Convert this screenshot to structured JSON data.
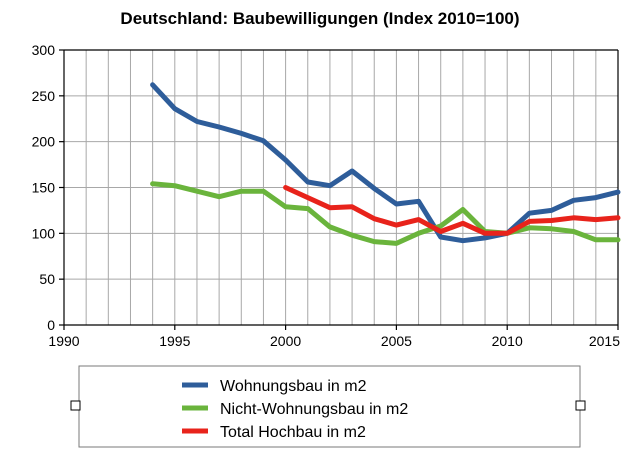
{
  "chart_data": {
    "type": "line",
    "title": "Deutschland: Baubewilligungen (Index 2010=100)",
    "xlabel": "",
    "ylabel": "",
    "xlim": [
      1990,
      2015
    ],
    "ylim": [
      0,
      300
    ],
    "xticks": [
      1990,
      1995,
      2000,
      2005,
      2010,
      2015
    ],
    "yticks": [
      0,
      50,
      100,
      150,
      200,
      250,
      300
    ],
    "grid": true,
    "legend_position": "bottom",
    "series": [
      {
        "name": "Wohnungsbau in m2",
        "color": "#2e5d9a",
        "x": [
          1994,
          1995,
          1996,
          1997,
          1998,
          1999,
          2000,
          2001,
          2002,
          2003,
          2004,
          2005,
          2006,
          2007,
          2008,
          2009,
          2010,
          2011,
          2012,
          2013,
          2014,
          2015
        ],
        "y": [
          262,
          236,
          222,
          216,
          209,
          201,
          180,
          156,
          152,
          168,
          149,
          132,
          135,
          96,
          92,
          95,
          100,
          122,
          125,
          136,
          139,
          145
        ]
      },
      {
        "name": "Nicht-Wohnungsbau in m2",
        "color": "#6ab43c",
        "x": [
          1994,
          1995,
          1996,
          1997,
          1998,
          1999,
          2000,
          2001,
          2002,
          2003,
          2004,
          2005,
          2006,
          2007,
          2008,
          2009,
          2010,
          2011,
          2012,
          2013,
          2014,
          2015
        ],
        "y": [
          154,
          152,
          146,
          140,
          146,
          146,
          129,
          127,
          107,
          98,
          91,
          89,
          100,
          108,
          126,
          102,
          100,
          106,
          105,
          102,
          93,
          93
        ]
      },
      {
        "name": "Total Hochbau in m2",
        "color": "#e8231b",
        "x": [
          2000,
          2001,
          2002,
          2003,
          2004,
          2005,
          2006,
          2007,
          2008,
          2009,
          2010,
          2011,
          2012,
          2013,
          2014,
          2015
        ],
        "y": [
          150,
          139,
          128,
          129,
          116,
          109,
          115,
          102,
          111,
          100,
          100,
          113,
          114,
          117,
          115,
          117
        ]
      }
    ]
  }
}
